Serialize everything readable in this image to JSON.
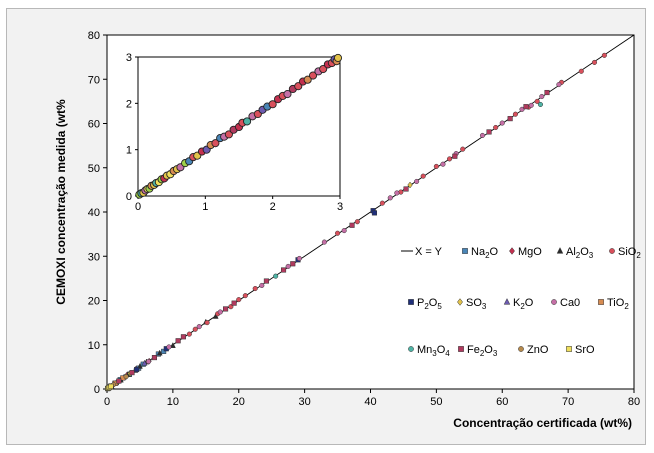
{
  "chart_data": [
    {
      "type": "scatter",
      "title": "",
      "xlabel": "Concentração certificada (wt%)",
      "ylabel": "CEMOXI concentração medida (wt%",
      "xlim": [
        0,
        80
      ],
      "ylim": [
        0,
        80
      ],
      "xticks": [
        "0",
        "10",
        "20",
        "30",
        "40",
        "50",
        "60",
        "70",
        "80"
      ],
      "yticks": [
        "0",
        "10",
        "20",
        "30",
        "40",
        "50",
        "60",
        "70",
        "80"
      ],
      "grid": false,
      "legend_position": "right-center",
      "reference_line": {
        "name": "X = Y",
        "slope": 1,
        "intercept": 0
      },
      "series": [
        {
          "key": "na2o",
          "formula": [
            "Na",
            "2",
            "O"
          ],
          "marker": "square",
          "color": "#4a86b7",
          "x": [
            0.5,
            1.2,
            2.0,
            3.4,
            4.8,
            5.5,
            7.8,
            8.6
          ],
          "y": [
            0.5,
            1.3,
            2.1,
            3.3,
            4.7,
            5.6,
            7.9,
            8.5
          ]
        },
        {
          "key": "mgo",
          "formula": [
            "MgO"
          ],
          "marker": "diamond",
          "color": "#c4304f",
          "x": [
            0.3,
            1.0,
            2.2,
            3.0,
            4.4,
            6.4
          ],
          "y": [
            0.3,
            1.1,
            2.2,
            3.1,
            4.5,
            6.3
          ]
        },
        {
          "key": "al2o3",
          "formula": [
            "Al",
            "2",
            "O",
            "3"
          ],
          "marker": "triangle",
          "color": "#2b2b2b",
          "x": [
            2.1,
            3.2,
            4.3,
            5.0,
            6.0,
            8.0,
            10.0,
            15.0,
            16.5
          ],
          "y": [
            2.0,
            3.3,
            4.2,
            5.1,
            6.1,
            8.1,
            9.8,
            15.1,
            16.4
          ]
        },
        {
          "key": "sio2",
          "formula": [
            "SiO",
            "2"
          ],
          "marker": "circle",
          "color": "#d9505c",
          "x": [
            12.5,
            13.4,
            15.2,
            16.8,
            18.8,
            20.0,
            21.0,
            22.5,
            35.0,
            38.0,
            41.8,
            44.6,
            48.0,
            50.0,
            52.0,
            54.0,
            59.0,
            62.0,
            64.0,
            65.3,
            69.0,
            72.0,
            74.0,
            75.5
          ],
          "y": [
            12.4,
            13.5,
            15.0,
            17.0,
            18.6,
            20.2,
            21.1,
            22.7,
            35.2,
            37.8,
            42.0,
            44.5,
            48.1,
            50.3,
            52.0,
            54.2,
            59.1,
            62.1,
            63.7,
            65.0,
            69.3,
            71.8,
            73.8,
            75.4
          ]
        },
        {
          "key": "p2o5",
          "formula": [
            "P",
            "2",
            "O",
            "5"
          ],
          "marker": "square",
          "color": "#1f2f7a",
          "x": [
            0.2,
            4.5,
            9.0,
            29.0,
            40.4,
            40.6
          ],
          "y": [
            0.2,
            4.4,
            9.1,
            29.2,
            40.3,
            39.8
          ]
        },
        {
          "key": "so3",
          "formula": [
            "SO",
            "3"
          ],
          "marker": "diamond",
          "color": "#e3c34a",
          "x": [
            0.4,
            0.9,
            1.7,
            2.7,
            3.5,
            46.0
          ],
          "y": [
            0.4,
            0.9,
            1.6,
            2.6,
            3.5,
            46.1
          ]
        },
        {
          "key": "k2o",
          "formula": [
            "K",
            "2",
            "O"
          ],
          "marker": "triangle",
          "color": "#6d5bb0",
          "x": [
            0.2,
            0.7,
            1.4,
            2.6,
            5.7
          ],
          "y": [
            0.2,
            0.6,
            1.4,
            2.7,
            5.8
          ]
        },
        {
          "key": "cao",
          "formula": [
            "Ca0"
          ],
          "marker": "circle",
          "color": "#c56fa6",
          "x": [
            6.3,
            9.4,
            14.0,
            17.2,
            23.5,
            27.5,
            29.2,
            33.0,
            36.0,
            43.0,
            44.0,
            47.0,
            51.0,
            53.0,
            57.0,
            60.0,
            63.0,
            64.4,
            66.0,
            68.6
          ],
          "y": [
            6.2,
            9.5,
            14.1,
            17.4,
            23.4,
            27.7,
            29.5,
            33.2,
            35.8,
            43.2,
            44.3,
            46.9,
            50.8,
            53.2,
            57.3,
            60.1,
            63.2,
            64.1,
            66.1,
            68.8
          ]
        },
        {
          "key": "tio2",
          "formula": [
            "TiO",
            "2"
          ],
          "marker": "square",
          "color": "#d78c52",
          "x": [
            0.1,
            0.3,
            0.6,
            1.3,
            2.4
          ],
          "y": [
            0.1,
            0.3,
            0.7,
            1.3,
            2.5
          ]
        },
        {
          "key": "mn3o4",
          "formula": [
            "Mn",
            "3",
            "O",
            "4"
          ],
          "marker": "circle",
          "color": "#4fb3a5",
          "x": [
            0.1,
            0.4,
            25.6,
            65.8
          ],
          "y": [
            0.1,
            0.4,
            25.5,
            64.3
          ]
        },
        {
          "key": "fe2o3",
          "formula": [
            "Fe",
            "2",
            "O",
            "3"
          ],
          "marker": "square",
          "color": "#b03a5e",
          "x": [
            1.8,
            3.8,
            7.2,
            10.8,
            11.6,
            18.0,
            19.3,
            24.2,
            26.8,
            28.2,
            37.2,
            45.4,
            52.8,
            58.0,
            61.2,
            63.6,
            66.8
          ],
          "y": [
            1.8,
            3.7,
            7.1,
            10.9,
            11.8,
            18.1,
            19.4,
            24.4,
            26.9,
            28.3,
            37.0,
            45.2,
            52.6,
            58.1,
            61.1,
            63.8,
            67.0
          ]
        },
        {
          "key": "zno",
          "formula": [
            "ZnO"
          ],
          "marker": "circle",
          "color": "#b68a4c",
          "x": [
            0.1,
            0.3,
            0.5,
            1.0,
            2.9
          ],
          "y": [
            0.1,
            0.3,
            0.5,
            1.0,
            2.8
          ]
        },
        {
          "key": "sro",
          "formula": [
            "SrO"
          ],
          "marker": "square",
          "color": "#f0df5c",
          "x": [
            0.1,
            0.2,
            0.35,
            0.6
          ],
          "y": [
            0.1,
            0.2,
            0.35,
            0.6
          ]
        }
      ]
    },
    {
      "type": "scatter",
      "title": "",
      "xlim": [
        0,
        3
      ],
      "ylim": [
        0,
        3
      ],
      "xticks": [
        "0",
        "1",
        "2",
        "3"
      ],
      "yticks": [
        "0",
        "1",
        "2",
        "3"
      ],
      "grid": false,
      "reference_line": {
        "slope": 1,
        "intercept": 0
      },
      "points": [
        {
          "x": 0.02,
          "y": 0.03,
          "c": "#9fd24a"
        },
        {
          "x": 0.05,
          "y": 0.06,
          "c": "#4fb3a5"
        },
        {
          "x": 0.08,
          "y": 0.07,
          "c": "#e3c34a"
        },
        {
          "x": 0.11,
          "y": 0.12,
          "c": "#c56fa6"
        },
        {
          "x": 0.14,
          "y": 0.15,
          "c": "#f0df5c"
        },
        {
          "x": 0.17,
          "y": 0.16,
          "c": "#9fd24a"
        },
        {
          "x": 0.2,
          "y": 0.22,
          "c": "#d78c52"
        },
        {
          "x": 0.24,
          "y": 0.24,
          "c": "#e3c34a"
        },
        {
          "x": 0.27,
          "y": 0.28,
          "c": "#4fb3a5"
        },
        {
          "x": 0.31,
          "y": 0.3,
          "c": "#f0df5c"
        },
        {
          "x": 0.35,
          "y": 0.36,
          "c": "#9fd24a"
        },
        {
          "x": 0.39,
          "y": 0.38,
          "c": "#c4304f"
        },
        {
          "x": 0.43,
          "y": 0.44,
          "c": "#e3c34a"
        },
        {
          "x": 0.48,
          "y": 0.47,
          "c": "#f0df5c"
        },
        {
          "x": 0.53,
          "y": 0.54,
          "c": "#d78c52"
        },
        {
          "x": 0.58,
          "y": 0.58,
          "c": "#e3c34a"
        },
        {
          "x": 0.63,
          "y": 0.62,
          "c": "#c56fa6"
        },
        {
          "x": 0.7,
          "y": 0.71,
          "c": "#9fd24a"
        },
        {
          "x": 0.76,
          "y": 0.75,
          "c": "#4a86b7"
        },
        {
          "x": 0.82,
          "y": 0.84,
          "c": "#d9505c"
        },
        {
          "x": 0.88,
          "y": 0.87,
          "c": "#e3c34a"
        },
        {
          "x": 0.95,
          "y": 0.96,
          "c": "#c4304f"
        },
        {
          "x": 1.02,
          "y": 1.0,
          "c": "#6d5bb0"
        },
        {
          "x": 1.08,
          "y": 1.1,
          "c": "#d78c52"
        },
        {
          "x": 1.15,
          "y": 1.14,
          "c": "#d9505c"
        },
        {
          "x": 1.22,
          "y": 1.25,
          "c": "#4a86b7"
        },
        {
          "x": 1.28,
          "y": 1.28,
          "c": "#c56fa6"
        },
        {
          "x": 1.35,
          "y": 1.33,
          "c": "#d9505c"
        },
        {
          "x": 1.42,
          "y": 1.43,
          "c": "#b03a5e"
        },
        {
          "x": 1.5,
          "y": 1.49,
          "c": "#c4304f"
        },
        {
          "x": 1.55,
          "y": 1.58,
          "c": "#d9505c"
        },
        {
          "x": 1.62,
          "y": 1.61,
          "c": "#4fb3a5"
        },
        {
          "x": 1.7,
          "y": 1.72,
          "c": "#c56fa6"
        },
        {
          "x": 1.78,
          "y": 1.77,
          "c": "#d9505c"
        },
        {
          "x": 1.85,
          "y": 1.86,
          "c": "#6d5bb0"
        },
        {
          "x": 1.92,
          "y": 1.93,
          "c": "#4a86b7"
        },
        {
          "x": 2.0,
          "y": 1.98,
          "c": "#d9505c"
        },
        {
          "x": 2.08,
          "y": 2.09,
          "c": "#c4304f"
        },
        {
          "x": 2.15,
          "y": 2.16,
          "c": "#d9505c"
        },
        {
          "x": 2.22,
          "y": 2.2,
          "c": "#c56fa6"
        },
        {
          "x": 2.3,
          "y": 2.31,
          "c": "#b03a5e"
        },
        {
          "x": 2.38,
          "y": 2.37,
          "c": "#d9505c"
        },
        {
          "x": 2.45,
          "y": 2.47,
          "c": "#c4304f"
        },
        {
          "x": 2.52,
          "y": 2.51,
          "c": "#d78c52"
        },
        {
          "x": 2.6,
          "y": 2.6,
          "c": "#d9505c"
        },
        {
          "x": 2.68,
          "y": 2.69,
          "c": "#c56fa6"
        },
        {
          "x": 2.75,
          "y": 2.74,
          "c": "#d9505c"
        },
        {
          "x": 2.82,
          "y": 2.84,
          "c": "#c4304f"
        },
        {
          "x": 2.88,
          "y": 2.87,
          "c": "#d9505c"
        },
        {
          "x": 2.92,
          "y": 2.95,
          "c": "#6d5bb0"
        },
        {
          "x": 2.95,
          "y": 2.91,
          "c": "#d78c52"
        },
        {
          "x": 2.97,
          "y": 2.98,
          "c": "#e3c34a"
        }
      ]
    }
  ]
}
